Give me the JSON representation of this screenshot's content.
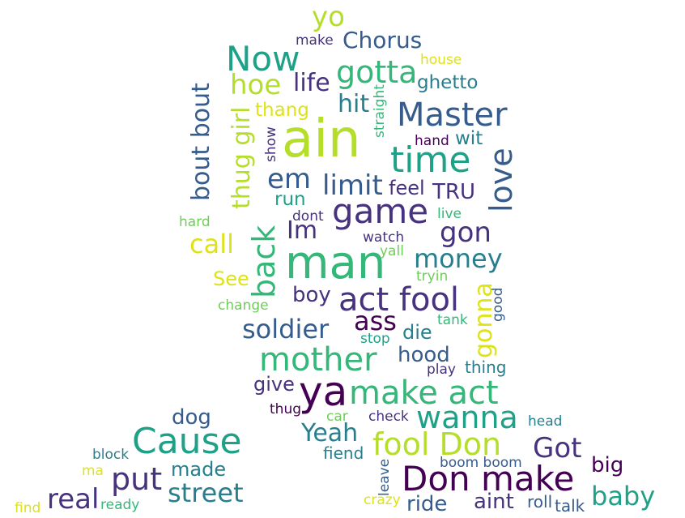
{
  "words": [
    {
      "text": "yo",
      "color": "#b5de2b"
    },
    {
      "text": "make",
      "color": "#46327e"
    },
    {
      "text": "Chorus",
      "color": "#365c8d"
    },
    {
      "text": "Now",
      "color": "#1fa187"
    },
    {
      "text": "house",
      "color": "#dde318"
    },
    {
      "text": "gotta",
      "color": "#35b779"
    },
    {
      "text": "hoe",
      "color": "#b5de2b"
    },
    {
      "text": "life",
      "color": "#46327e"
    },
    {
      "text": "ghetto",
      "color": "#277f8e"
    },
    {
      "text": "bout bout",
      "color": "#365c8d"
    },
    {
      "text": "thug girl",
      "color": "#b5de2b"
    },
    {
      "text": "hit",
      "color": "#277f8e"
    },
    {
      "text": "straight",
      "color": "#35b779"
    },
    {
      "text": "Master",
      "color": "#365c8d"
    },
    {
      "text": "thang",
      "color": "#dde318"
    },
    {
      "text": "ain",
      "color": "#b5de2b"
    },
    {
      "text": "show",
      "color": "#46327e"
    },
    {
      "text": "hand",
      "color": "#440154"
    },
    {
      "text": "wit",
      "color": "#277f8e"
    },
    {
      "text": "time",
      "color": "#1fa187"
    },
    {
      "text": "love",
      "color": "#365c8d"
    },
    {
      "text": "em",
      "color": "#365c8d"
    },
    {
      "text": "limit",
      "color": "#365c8d"
    },
    {
      "text": "feel",
      "color": "#46327e"
    },
    {
      "text": "TRU",
      "color": "#46327e"
    },
    {
      "text": "run",
      "color": "#1fa187"
    },
    {
      "text": "back",
      "color": "#35b779"
    },
    {
      "text": "game",
      "color": "#46327e"
    },
    {
      "text": "hard",
      "color": "#6ece58"
    },
    {
      "text": "dont",
      "color": "#46327e"
    },
    {
      "text": "live",
      "color": "#35b779"
    },
    {
      "text": "Im",
      "color": "#46327e"
    },
    {
      "text": "gon",
      "color": "#46327e"
    },
    {
      "text": "call",
      "color": "#dde318"
    },
    {
      "text": "watch",
      "color": "#46327e"
    },
    {
      "text": "man",
      "color": "#35b779"
    },
    {
      "text": "yall",
      "color": "#6ece58"
    },
    {
      "text": "money",
      "color": "#277f8e"
    },
    {
      "text": "See",
      "color": "#dde318"
    },
    {
      "text": "tryin",
      "color": "#6ece58"
    },
    {
      "text": "boy",
      "color": "#46327e"
    },
    {
      "text": "act fool",
      "color": "#46327e"
    },
    {
      "text": "gonna",
      "color": "#dde318"
    },
    {
      "text": "good",
      "color": "#365c8d"
    },
    {
      "text": "change",
      "color": "#6ece58"
    },
    {
      "text": "soldier",
      "color": "#365c8d"
    },
    {
      "text": "ass",
      "color": "#440154"
    },
    {
      "text": "tank",
      "color": "#35b779"
    },
    {
      "text": "stop",
      "color": "#1fa187"
    },
    {
      "text": "die",
      "color": "#277f8e"
    },
    {
      "text": "mother",
      "color": "#35b779"
    },
    {
      "text": "hood",
      "color": "#365c8d"
    },
    {
      "text": "play",
      "color": "#46327e"
    },
    {
      "text": "thing",
      "color": "#277f8e"
    },
    {
      "text": "give",
      "color": "#46327e"
    },
    {
      "text": "ya",
      "color": "#440154"
    },
    {
      "text": "make act",
      "color": "#35b779"
    },
    {
      "text": "thug",
      "color": "#440154"
    },
    {
      "text": "dog",
      "color": "#365c8d"
    },
    {
      "text": "car",
      "color": "#6ece58"
    },
    {
      "text": "check",
      "color": "#46327e"
    },
    {
      "text": "wanna",
      "color": "#1fa187"
    },
    {
      "text": "head",
      "color": "#277f8e"
    },
    {
      "text": "Yeah",
      "color": "#277f8e"
    },
    {
      "text": "Cause",
      "color": "#1fa187"
    },
    {
      "text": "fool Don",
      "color": "#b5de2b"
    },
    {
      "text": "Got",
      "color": "#46327e"
    },
    {
      "text": "fiend",
      "color": "#277f8e"
    },
    {
      "text": "block",
      "color": "#277f8e"
    },
    {
      "text": "made",
      "color": "#277f8e"
    },
    {
      "text": "boom boom",
      "color": "#365c8d"
    },
    {
      "text": "big",
      "color": "#440154"
    },
    {
      "text": "ma",
      "color": "#dde318"
    },
    {
      "text": "put",
      "color": "#46327e"
    },
    {
      "text": "leave",
      "color": "#365c8d"
    },
    {
      "text": "Don make",
      "color": "#440154"
    },
    {
      "text": "street",
      "color": "#277f8e"
    },
    {
      "text": "baby",
      "color": "#1fa187"
    },
    {
      "text": "real",
      "color": "#46327e"
    },
    {
      "text": "find",
      "color": "#dde318"
    },
    {
      "text": "ready",
      "color": "#35b779"
    },
    {
      "text": "crazy",
      "color": "#dde318"
    },
    {
      "text": "ride",
      "color": "#365c8d"
    },
    {
      "text": "aint",
      "color": "#46327e"
    },
    {
      "text": "roll",
      "color": "#365c8d"
    },
    {
      "text": "talk",
      "color": "#365c8d"
    }
  ]
}
